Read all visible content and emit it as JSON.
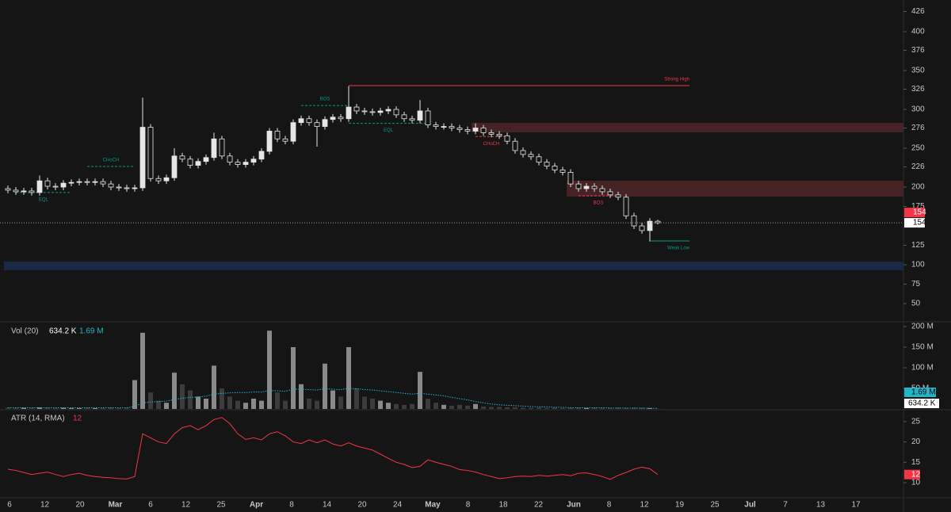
{
  "chart_data": [
    {
      "type": "candlestick",
      "open": [
        198,
        196,
        194,
        195,
        193,
        208,
        201,
        200,
        205,
        206,
        207,
        206,
        207,
        204,
        200,
        199,
        198,
        199,
        277,
        211,
        208,
        212,
        240,
        236,
        228,
        233,
        238,
        262,
        240,
        232,
        229,
        232,
        236,
        246,
        272,
        262,
        259,
        283,
        288,
        283,
        278,
        287,
        290,
        288,
        303,
        298,
        297,
        296,
        298,
        300,
        293,
        288,
        286,
        298,
        280,
        278,
        278,
        276,
        274,
        272,
        276,
        270,
        268,
        266,
        259,
        247,
        242,
        239,
        232,
        227,
        222,
        219,
        204,
        198,
        201,
        198,
        194,
        190,
        187,
        163,
        150,
        144,
        156
      ],
      "high": [
        202,
        200,
        199,
        199,
        215,
        212,
        205,
        209,
        210,
        211,
        211,
        211,
        211,
        208,
        204,
        203,
        203,
        315,
        281,
        215,
        216,
        250,
        244,
        240,
        237,
        242,
        270,
        266,
        244,
        236,
        236,
        240,
        250,
        276,
        276,
        266,
        287,
        292,
        292,
        287,
        291,
        294,
        294,
        330,
        307,
        302,
        301,
        302,
        304,
        304,
        297,
        292,
        312,
        302,
        284,
        282,
        282,
        280,
        278,
        282,
        280,
        274,
        272,
        270,
        263,
        251,
        246,
        243,
        236,
        231,
        226,
        223,
        208,
        205,
        205,
        202,
        198,
        194,
        191,
        167,
        154,
        160,
        158
      ],
      "low": [
        192,
        190,
        190,
        189,
        189,
        197,
        196,
        196,
        201,
        202,
        202,
        202,
        200,
        196,
        195,
        194,
        194,
        195,
        207,
        204,
        204,
        208,
        232,
        224,
        224,
        229,
        234,
        236,
        228,
        225,
        225,
        228,
        232,
        242,
        258,
        255,
        255,
        279,
        279,
        252,
        274,
        283,
        284,
        284,
        294,
        293,
        292,
        292,
        294,
        289,
        284,
        282,
        282,
        276,
        274,
        274,
        272,
        270,
        268,
        268,
        266,
        264,
        262,
        255,
        243,
        238,
        235,
        228,
        223,
        218,
        215,
        200,
        194,
        194,
        194,
        190,
        186,
        183,
        159,
        146,
        140,
        130,
        152
      ],
      "close": [
        196,
        194,
        195,
        193,
        208,
        201,
        200,
        205,
        206,
        207,
        206,
        207,
        204,
        200,
        199,
        198,
        199,
        277,
        211,
        208,
        212,
        240,
        236,
        228,
        233,
        238,
        262,
        240,
        232,
        229,
        232,
        236,
        246,
        272,
        262,
        259,
        283,
        288,
        283,
        278,
        287,
        290,
        288,
        303,
        298,
        297,
        296,
        298,
        300,
        293,
        288,
        286,
        298,
        280,
        278,
        278,
        276,
        274,
        272,
        276,
        270,
        268,
        266,
        259,
        247,
        242,
        239,
        232,
        227,
        222,
        219,
        204,
        198,
        201,
        198,
        194,
        190,
        187,
        163,
        150,
        144,
        156,
        154
      ],
      "up_color": "#e6e6e6",
      "down_color": "#151515",
      "wick_color": "#e6e6e6",
      "ylim": [
        27.6,
        440.8
      ],
      "yticks": [
        426,
        400,
        376,
        350,
        326,
        300,
        276,
        250,
        226,
        200,
        175,
        125,
        100,
        75,
        50
      ],
      "zones": [
        {
          "top": 282.7,
          "bottom": 270.4,
          "from": 59,
          "color": "#4a2526"
        },
        {
          "top": 208.2,
          "bottom": 187.8,
          "from": 71,
          "color": "#4a2526"
        },
        {
          "top": 104,
          "bottom": 92.9,
          "from": 0,
          "color": "#1c2a4a"
        }
      ],
      "levels": [
        {
          "label": "CHoCH",
          "value": 226.5,
          "from": 10,
          "to": 16,
          "color": "#089981",
          "style": "dashed",
          "label_side": "above"
        },
        {
          "label": "EQL",
          "value": 193,
          "from": 1,
          "to": 8,
          "color": "#089981",
          "style": "dashed",
          "label_side": "below"
        },
        {
          "label": "BOS",
          "value": 305,
          "from": 37,
          "to": 43,
          "color": "#089981",
          "style": "dashed",
          "label_side": "above"
        },
        {
          "label": "EQL",
          "value": 282,
          "from": 43,
          "to": 53,
          "color": "#089981",
          "style": "dashed",
          "label_side": "below"
        },
        {
          "label": "CHoCH",
          "value": 265,
          "from": 59,
          "to": 63,
          "color": "#f23645",
          "style": "dashed",
          "label_side": "below"
        },
        {
          "label": "Strong High",
          "value": 330.6,
          "from": 43,
          "to": 86,
          "color": "#f23645",
          "style": "solid",
          "label_side": "above",
          "label_at": "end"
        },
        {
          "label": "BOS",
          "value": 188.8,
          "from": 72,
          "to": 77,
          "color": "#f23645",
          "style": "dashed",
          "label_side": "below"
        },
        {
          "label": "Weak Low",
          "value": 130.6,
          "from": 81,
          "to": 86,
          "color": "#089981",
          "style": "solid",
          "label_side": "below",
          "label_at": "end"
        }
      ],
      "x_labels": [
        "6",
        "12",
        "20",
        "Mar",
        "6",
        "12",
        "25",
        "Apr",
        "8",
        "14",
        "20",
        "24",
        "May",
        "8",
        "18",
        "22",
        "Jun",
        "8",
        "12",
        "19",
        "25",
        "Jul",
        "7",
        "13",
        "17"
      ]
    },
    {
      "type": "bar",
      "title": "Vol (20)",
      "values": [
        3,
        2,
        3,
        2,
        4,
        3,
        2,
        3,
        2,
        2,
        3,
        2,
        2,
        3,
        2,
        3,
        70,
        185,
        40,
        20,
        15,
        88,
        60,
        45,
        30,
        25,
        105,
        50,
        30,
        20,
        15,
        25,
        20,
        190,
        40,
        20,
        150,
        60,
        25,
        20,
        110,
        45,
        30,
        150,
        50,
        30,
        25,
        20,
        15,
        12,
        10,
        12,
        90,
        25,
        15,
        10,
        8,
        10,
        8,
        12,
        6,
        5,
        5,
        4,
        4,
        3,
        3,
        3,
        2,
        3,
        2,
        3,
        3,
        2,
        3,
        2,
        2,
        3,
        2,
        3,
        3,
        2,
        0.6342
      ],
      "last_label": "634.2 K",
      "up_color": "#8a8a8a",
      "down_color": "#3c3c3c",
      "ma_values": [
        3,
        3,
        3,
        3,
        3,
        3,
        3,
        3,
        3,
        3,
        3,
        3,
        3,
        3,
        3,
        3,
        6,
        15,
        17,
        18,
        19,
        23,
        26,
        28,
        29,
        31,
        36,
        38,
        39,
        40,
        40,
        41,
        41,
        45,
        44,
        43,
        48,
        48,
        47,
        46,
        49,
        48,
        47,
        50,
        49,
        47,
        46,
        44,
        42,
        40,
        38,
        36,
        38,
        36,
        34,
        32,
        28,
        25,
        22,
        18,
        15,
        12,
        10,
        9,
        8,
        7,
        6,
        5,
        5,
        4,
        4,
        3,
        3,
        3,
        3,
        3,
        2.5,
        2.5,
        2.3,
        2.2,
        2,
        1.8,
        1.69
      ],
      "ma_last_label": "1.69 M",
      "ma_color": "#22b5c9",
      "ylim": [
        0,
        209.6
      ],
      "yticks": [
        {
          "value": 200,
          "label": "200 M"
        },
        {
          "value": 150,
          "label": "150 M"
        },
        {
          "value": 100,
          "label": "100 M"
        },
        {
          "value": 50,
          "label": "50 M"
        }
      ]
    },
    {
      "type": "line",
      "title": "ATR (14, RMA)",
      "values": [
        13.3,
        13,
        12.5,
        12,
        12.3,
        12.6,
        12,
        11.5,
        12,
        12.3,
        11.8,
        11.5,
        11.3,
        11.2,
        11,
        10.9,
        11.5,
        22,
        21,
        20,
        19.6,
        22,
        23.5,
        24,
        23,
        24,
        25.5,
        26,
        24.5,
        22,
        20.6,
        21,
        20.5,
        22,
        22.5,
        21.5,
        20,
        19.6,
        20.5,
        19.8,
        20.5,
        19.5,
        19,
        19.8,
        19,
        18.5,
        18,
        17,
        16,
        15,
        14.5,
        13.7,
        14,
        15.6,
        15,
        14.5,
        14,
        13.2,
        13,
        12.6,
        12,
        11.5,
        11,
        11.2,
        11.5,
        11.6,
        11.5,
        11.8,
        11.6,
        11.8,
        12,
        11.7,
        12.3,
        12.4,
        12,
        11.5,
        10.8,
        11.8,
        12.5,
        13.3,
        13.8,
        13.4,
        12
      ],
      "color": "#f23645",
      "ylim": [
        6.3,
        27.7
      ],
      "yticks": [
        25,
        20,
        15,
        10
      ]
    }
  ]
}
